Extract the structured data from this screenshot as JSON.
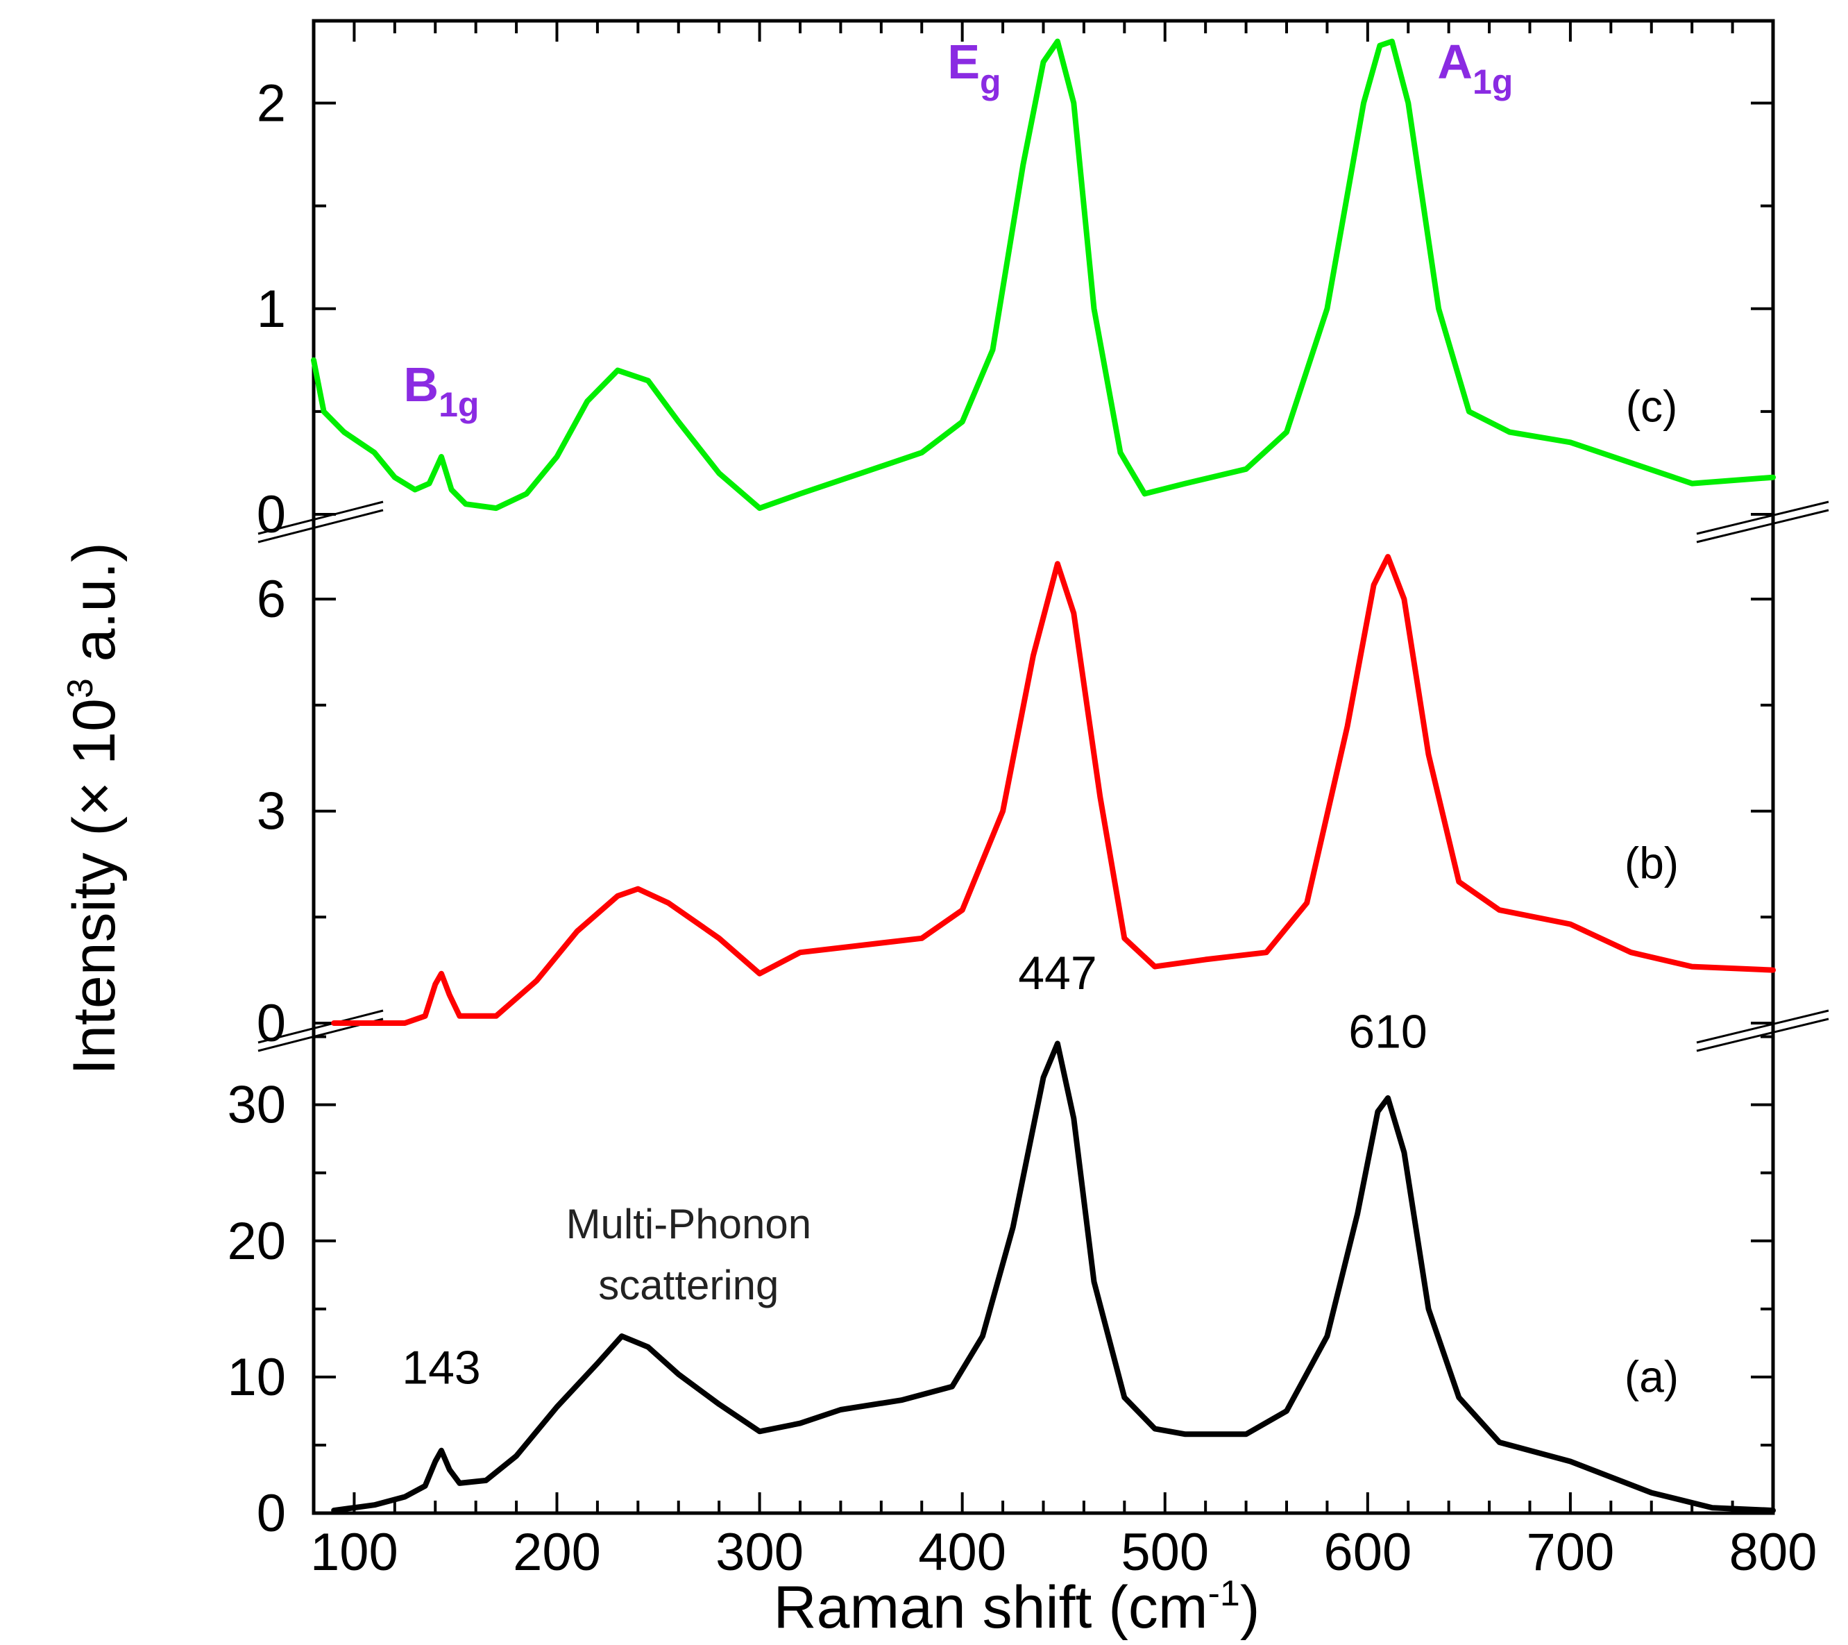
{
  "chart_data": {
    "type": "line",
    "xlabel": "Raman shift (cm",
    "xlabel_sup": "-1",
    "xlabel_close": ")",
    "ylabel": "Intensity (× 10",
    "ylabel_sup": "3",
    "ylabel_tail": " a.u.)",
    "xlim": [
      80,
      800
    ],
    "xticks": [
      100,
      200,
      300,
      400,
      500,
      600,
      700,
      800
    ],
    "colors": {
      "a": "#000000",
      "b": "#ff0000",
      "c": "#00ee00",
      "mode": "#8a2be2"
    },
    "panels": [
      {
        "id": "a",
        "label": "(a)",
        "color": "#000000",
        "ylim": [
          0,
          36
        ],
        "yticks": [
          0,
          10,
          20,
          30
        ],
        "series": [
          {
            "x": 90,
            "y": 0.2
          },
          {
            "x": 110,
            "y": 0.6
          },
          {
            "x": 125,
            "y": 1.2
          },
          {
            "x": 135,
            "y": 2.0
          },
          {
            "x": 140,
            "y": 3.8
          },
          {
            "x": 143,
            "y": 4.6
          },
          {
            "x": 147,
            "y": 3.2
          },
          {
            "x": 152,
            "y": 2.2
          },
          {
            "x": 165,
            "y": 2.4
          },
          {
            "x": 180,
            "y": 4.2
          },
          {
            "x": 200,
            "y": 7.8
          },
          {
            "x": 220,
            "y": 11.0
          },
          {
            "x": 232,
            "y": 13.0
          },
          {
            "x": 245,
            "y": 12.2
          },
          {
            "x": 260,
            "y": 10.2
          },
          {
            "x": 280,
            "y": 8.0
          },
          {
            "x": 300,
            "y": 6.0
          },
          {
            "x": 320,
            "y": 6.6
          },
          {
            "x": 340,
            "y": 7.6
          },
          {
            "x": 370,
            "y": 8.3
          },
          {
            "x": 395,
            "y": 9.3
          },
          {
            "x": 410,
            "y": 13.0
          },
          {
            "x": 425,
            "y": 21.0
          },
          {
            "x": 440,
            "y": 32.0
          },
          {
            "x": 447,
            "y": 34.5
          },
          {
            "x": 455,
            "y": 29.0
          },
          {
            "x": 465,
            "y": 17.0
          },
          {
            "x": 480,
            "y": 8.5
          },
          {
            "x": 495,
            "y": 6.2
          },
          {
            "x": 510,
            "y": 5.8
          },
          {
            "x": 540,
            "y": 5.8
          },
          {
            "x": 560,
            "y": 7.5
          },
          {
            "x": 580,
            "y": 13.0
          },
          {
            "x": 595,
            "y": 22.0
          },
          {
            "x": 605,
            "y": 29.5
          },
          {
            "x": 610,
            "y": 30.5
          },
          {
            "x": 618,
            "y": 26.5
          },
          {
            "x": 630,
            "y": 15.0
          },
          {
            "x": 645,
            "y": 8.5
          },
          {
            "x": 665,
            "y": 5.2
          },
          {
            "x": 700,
            "y": 3.8
          },
          {
            "x": 740,
            "y": 1.5
          },
          {
            "x": 770,
            "y": 0.4
          },
          {
            "x": 800,
            "y": 0.2
          }
        ],
        "annotations": [
          {
            "text": "143",
            "x": 143,
            "y": 9.5
          },
          {
            "text": "447",
            "x": 447,
            "y": 38.5
          },
          {
            "text": "610",
            "x": 610,
            "y": 34.2
          }
        ],
        "notes": [
          "Multi-Phonon",
          "scattering"
        ]
      },
      {
        "id": "b",
        "label": "(b)",
        "color": "#ff0000",
        "ylim": [
          0,
          7.2
        ],
        "yticks": [
          0,
          3,
          6
        ],
        "series": [
          {
            "x": 90,
            "y": 0.0
          },
          {
            "x": 110,
            "y": 0.0
          },
          {
            "x": 125,
            "y": 0.0
          },
          {
            "x": 135,
            "y": 0.1
          },
          {
            "x": 140,
            "y": 0.55
          },
          {
            "x": 143,
            "y": 0.7
          },
          {
            "x": 147,
            "y": 0.4
          },
          {
            "x": 152,
            "y": 0.1
          },
          {
            "x": 170,
            "y": 0.1
          },
          {
            "x": 190,
            "y": 0.6
          },
          {
            "x": 210,
            "y": 1.3
          },
          {
            "x": 230,
            "y": 1.8
          },
          {
            "x": 240,
            "y": 1.9
          },
          {
            "x": 255,
            "y": 1.7
          },
          {
            "x": 280,
            "y": 1.2
          },
          {
            "x": 300,
            "y": 0.7
          },
          {
            "x": 320,
            "y": 1.0
          },
          {
            "x": 350,
            "y": 1.1
          },
          {
            "x": 380,
            "y": 1.2
          },
          {
            "x": 400,
            "y": 1.6
          },
          {
            "x": 420,
            "y": 3.0
          },
          {
            "x": 435,
            "y": 5.2
          },
          {
            "x": 447,
            "y": 6.5
          },
          {
            "x": 455,
            "y": 5.8
          },
          {
            "x": 468,
            "y": 3.2
          },
          {
            "x": 480,
            "y": 1.2
          },
          {
            "x": 495,
            "y": 0.8
          },
          {
            "x": 520,
            "y": 0.9
          },
          {
            "x": 550,
            "y": 1.0
          },
          {
            "x": 570,
            "y": 1.7
          },
          {
            "x": 590,
            "y": 4.2
          },
          {
            "x": 603,
            "y": 6.2
          },
          {
            "x": 610,
            "y": 6.6
          },
          {
            "x": 618,
            "y": 6.0
          },
          {
            "x": 630,
            "y": 3.8
          },
          {
            "x": 645,
            "y": 2.0
          },
          {
            "x": 665,
            "y": 1.6
          },
          {
            "x": 700,
            "y": 1.4
          },
          {
            "x": 730,
            "y": 1.0
          },
          {
            "x": 760,
            "y": 0.8
          },
          {
            "x": 800,
            "y": 0.75
          }
        ]
      },
      {
        "id": "c",
        "label": "(c)",
        "color": "#00ee00",
        "ylim": [
          0,
          2.4
        ],
        "yticks": [
          0,
          1,
          2
        ],
        "series": [
          {
            "x": 80,
            "y": 0.75
          },
          {
            "x": 85,
            "y": 0.5
          },
          {
            "x": 95,
            "y": 0.4
          },
          {
            "x": 110,
            "y": 0.3
          },
          {
            "x": 120,
            "y": 0.18
          },
          {
            "x": 130,
            "y": 0.12
          },
          {
            "x": 137,
            "y": 0.15
          },
          {
            "x": 143,
            "y": 0.28
          },
          {
            "x": 148,
            "y": 0.12
          },
          {
            "x": 155,
            "y": 0.05
          },
          {
            "x": 170,
            "y": 0.03
          },
          {
            "x": 185,
            "y": 0.1
          },
          {
            "x": 200,
            "y": 0.28
          },
          {
            "x": 215,
            "y": 0.55
          },
          {
            "x": 230,
            "y": 0.7
          },
          {
            "x": 245,
            "y": 0.65
          },
          {
            "x": 260,
            "y": 0.45
          },
          {
            "x": 280,
            "y": 0.2
          },
          {
            "x": 300,
            "y": 0.03
          },
          {
            "x": 320,
            "y": 0.1
          },
          {
            "x": 350,
            "y": 0.2
          },
          {
            "x": 380,
            "y": 0.3
          },
          {
            "x": 400,
            "y": 0.45
          },
          {
            "x": 415,
            "y": 0.8
          },
          {
            "x": 430,
            "y": 1.7
          },
          {
            "x": 440,
            "y": 2.2
          },
          {
            "x": 447,
            "y": 2.3
          },
          {
            "x": 455,
            "y": 2.0
          },
          {
            "x": 465,
            "y": 1.0
          },
          {
            "x": 478,
            "y": 0.3
          },
          {
            "x": 490,
            "y": 0.1
          },
          {
            "x": 510,
            "y": 0.15
          },
          {
            "x": 540,
            "y": 0.22
          },
          {
            "x": 560,
            "y": 0.4
          },
          {
            "x": 580,
            "y": 1.0
          },
          {
            "x": 598,
            "y": 2.0
          },
          {
            "x": 606,
            "y": 2.28
          },
          {
            "x": 612,
            "y": 2.3
          },
          {
            "x": 620,
            "y": 2.0
          },
          {
            "x": 635,
            "y": 1.0
          },
          {
            "x": 650,
            "y": 0.5
          },
          {
            "x": 670,
            "y": 0.4
          },
          {
            "x": 700,
            "y": 0.35
          },
          {
            "x": 730,
            "y": 0.25
          },
          {
            "x": 760,
            "y": 0.15
          },
          {
            "x": 800,
            "y": 0.18
          }
        ],
        "modes": [
          {
            "base": "B",
            "sub": "1g",
            "x": 143,
            "y": 0.55
          },
          {
            "base": "E",
            "sub": "g",
            "x": 447,
            "y": 2.12
          },
          {
            "base": "A",
            "sub": "1g",
            "x": 612,
            "y": 2.12
          }
        ]
      }
    ]
  }
}
